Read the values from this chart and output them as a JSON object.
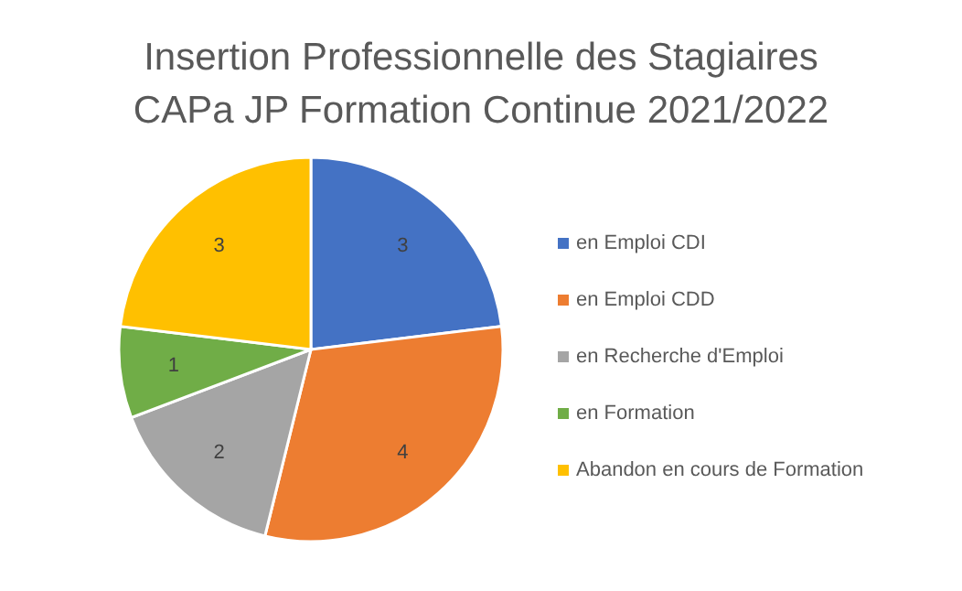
{
  "chart_data": {
    "type": "pie",
    "title": "Insertion Professionnelle des Stagiaires\nCAPa JP Formation Continue 2021/2022",
    "categories": [
      "en Emploi CDI",
      "en Emploi CDD",
      "en Recherche d'Emploi",
      "en Formation",
      "Abandon en cours de Formation"
    ],
    "values": [
      3,
      4,
      2,
      1,
      3
    ],
    "colors": [
      "#4472c4",
      "#ed7d31",
      "#a5a5a5",
      "#70ad47",
      "#ffc000"
    ],
    "data_labels": true,
    "legend": "right"
  }
}
